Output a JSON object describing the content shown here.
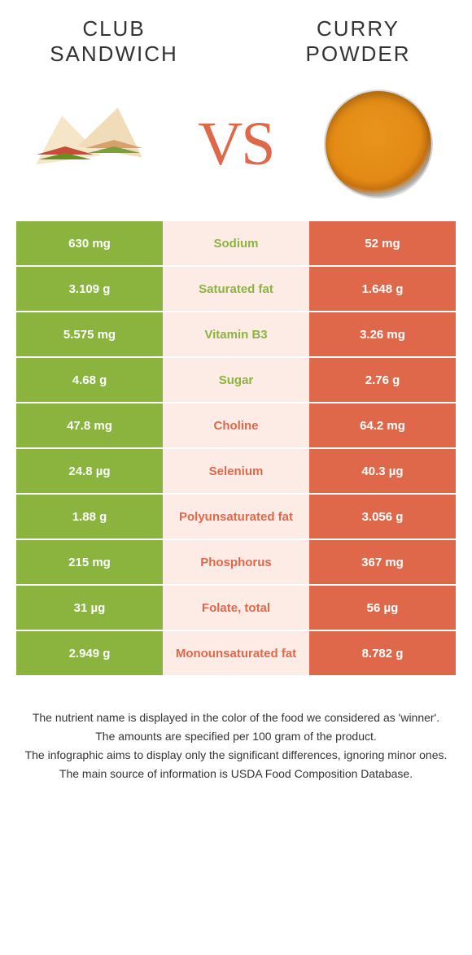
{
  "colors": {
    "green": "#8bb43f",
    "orange": "#e0684a",
    "mid_bg": "#fcece5"
  },
  "left_title_line1": "CLUB",
  "left_title_line2": "SANDWICH",
  "right_title_line1": "CURRY",
  "right_title_line2": "POWDER",
  "vs_label": "VS",
  "rows": [
    {
      "left": "630 mg",
      "label": "Sodium",
      "right": "52 mg",
      "winner": "left"
    },
    {
      "left": "3.109 g",
      "label": "Saturated fat",
      "right": "1.648 g",
      "winner": "left"
    },
    {
      "left": "5.575 mg",
      "label": "Vitamin B3",
      "right": "3.26 mg",
      "winner": "left"
    },
    {
      "left": "4.68 g",
      "label": "Sugar",
      "right": "2.76 g",
      "winner": "left"
    },
    {
      "left": "47.8 mg",
      "label": "Choline",
      "right": "64.2 mg",
      "winner": "right"
    },
    {
      "left": "24.8 µg",
      "label": "Selenium",
      "right": "40.3 µg",
      "winner": "right"
    },
    {
      "left": "1.88 g",
      "label": "Polyunsaturated fat",
      "right": "3.056 g",
      "winner": "right"
    },
    {
      "left": "215 mg",
      "label": "Phosphorus",
      "right": "367 mg",
      "winner": "right"
    },
    {
      "left": "31 µg",
      "label": "Folate, total",
      "right": "56 µg",
      "winner": "right"
    },
    {
      "left": "2.949 g",
      "label": "Monounsaturated fat",
      "right": "8.782 g",
      "winner": "right"
    }
  ],
  "footer": [
    "The nutrient name is displayed in the color of the food we considered as 'winner'.",
    "The amounts are specified per 100 gram of the product.",
    "The infographic aims to display only the significant differences, ignoring minor ones.",
    "The main source of information is USDA Food Composition Database."
  ]
}
